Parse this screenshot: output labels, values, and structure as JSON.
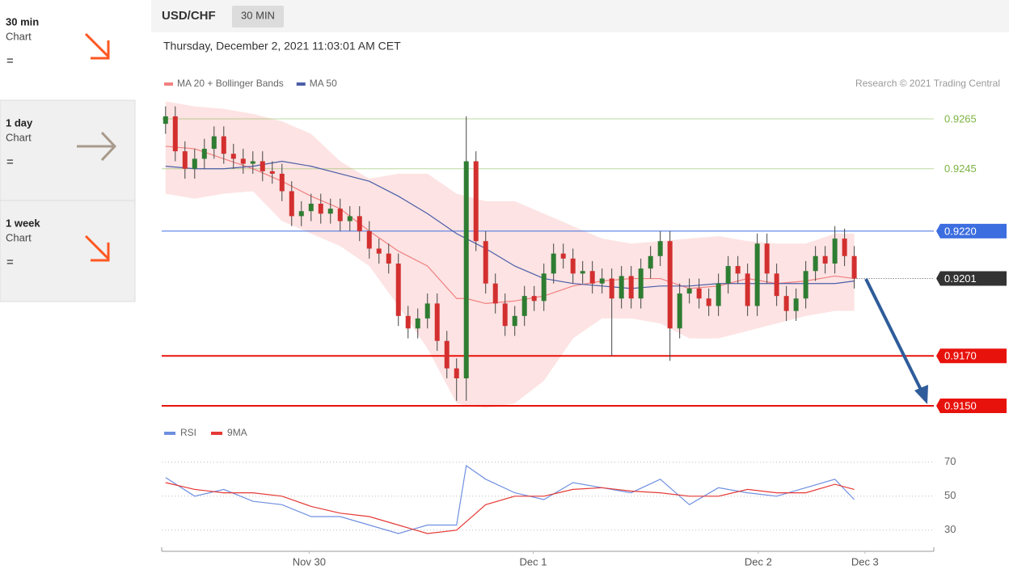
{
  "sidebar": [
    {
      "title": "30 min",
      "subtitle": "Chart",
      "status": "="
    },
    {
      "title": "1 day",
      "subtitle": "Chart",
      "status": "="
    },
    {
      "title": "1 week",
      "subtitle": "Chart",
      "status": "="
    }
  ],
  "header": {
    "symbol": "USD/CHF",
    "timeframe": "30 MIN",
    "timestamp": "Thursday, December 2, 2021 11:03:01 AM CET"
  },
  "chart_data": [
    {
      "type": "candlestick",
      "copyright": "Research © 2021 Trading Central",
      "xlim": [
        -0.4,
        79.2
      ],
      "ylim": [
        0.9146,
        0.9272
      ],
      "up_color": "#2e7d32",
      "down_color": "#d32f2f",
      "wick_color": "#444444",
      "open": [
        0.9263,
        0.9266,
        0.9252,
        0.9245,
        0.9249,
        0.9253,
        0.9258,
        0.9251,
        0.9249,
        0.9247,
        0.9248,
        0.9244,
        0.9243,
        0.9236,
        0.9226,
        0.9228,
        0.9231,
        0.9227,
        0.9229,
        0.9224,
        0.9226,
        0.922,
        0.9213,
        0.9211,
        0.9207,
        0.9186,
        0.9181,
        0.9185,
        0.9191,
        0.9176,
        0.9165,
        0.9161,
        0.9248,
        0.9216,
        0.9199,
        0.9191,
        0.9182,
        0.9186,
        0.9194,
        0.9192,
        0.9203,
        0.9211,
        0.9209,
        0.9203,
        0.9204,
        0.9199,
        0.9201,
        0.9193,
        0.9202,
        0.9193,
        0.9205,
        0.921,
        0.9216,
        0.9181,
        0.9195,
        0.9197,
        0.9193,
        0.919,
        0.9199,
        0.9206,
        0.9203,
        0.919,
        0.9215,
        0.9203,
        0.9194,
        0.9188,
        0.9193,
        0.9204,
        0.921,
        0.9207,
        0.9217,
        0.921
      ],
      "high": [
        0.927,
        0.927,
        0.9256,
        0.9253,
        0.9257,
        0.9262,
        0.9262,
        0.9255,
        0.9253,
        0.9252,
        0.9252,
        0.9248,
        0.9247,
        0.924,
        0.9232,
        0.9235,
        0.9235,
        0.9233,
        0.9233,
        0.923,
        0.923,
        0.9224,
        0.9217,
        0.9215,
        0.9211,
        0.919,
        0.9189,
        0.9195,
        0.9195,
        0.918,
        0.9169,
        0.9266,
        0.9252,
        0.922,
        0.9203,
        0.9195,
        0.919,
        0.9198,
        0.9198,
        0.9207,
        0.9215,
        0.9215,
        0.9213,
        0.9208,
        0.9208,
        0.9205,
        0.9205,
        0.9206,
        0.9206,
        0.9209,
        0.9214,
        0.922,
        0.922,
        0.9199,
        0.9201,
        0.9201,
        0.9197,
        0.9203,
        0.921,
        0.921,
        0.9207,
        0.9219,
        0.9219,
        0.9207,
        0.9198,
        0.9197,
        0.9208,
        0.9214,
        0.9214,
        0.9222,
        0.9221,
        0.9214
      ],
      "low": [
        0.9259,
        0.9248,
        0.9241,
        0.9241,
        0.9245,
        0.9249,
        0.9247,
        0.9245,
        0.9243,
        0.9243,
        0.924,
        0.9239,
        0.9232,
        0.9222,
        0.9222,
        0.9224,
        0.9223,
        0.9223,
        0.922,
        0.922,
        0.9216,
        0.9209,
        0.9207,
        0.9203,
        0.9182,
        0.9177,
        0.9177,
        0.9181,
        0.9172,
        0.9161,
        0.9152,
        0.9152,
        0.9212,
        0.9195,
        0.9187,
        0.9178,
        0.9178,
        0.9182,
        0.9188,
        0.9188,
        0.9199,
        0.9205,
        0.9199,
        0.9199,
        0.9195,
        0.9195,
        0.917,
        0.9189,
        0.9189,
        0.9189,
        0.9201,
        0.9206,
        0.9168,
        0.9177,
        0.9191,
        0.9189,
        0.9186,
        0.9186,
        0.9195,
        0.9199,
        0.9186,
        0.9186,
        0.9199,
        0.919,
        0.9184,
        0.9184,
        0.9189,
        0.92,
        0.9203,
        0.9203,
        0.9206,
        0.9197
      ],
      "close": [
        0.9266,
        0.9252,
        0.9245,
        0.9249,
        0.9253,
        0.9258,
        0.9251,
        0.9249,
        0.9247,
        0.9248,
        0.9244,
        0.9243,
        0.9236,
        0.9226,
        0.9228,
        0.9231,
        0.9227,
        0.9229,
        0.9224,
        0.9226,
        0.922,
        0.9213,
        0.9211,
        0.9207,
        0.9186,
        0.9181,
        0.9185,
        0.9191,
        0.9176,
        0.9165,
        0.9161,
        0.9248,
        0.9216,
        0.9199,
        0.9191,
        0.9182,
        0.9186,
        0.9194,
        0.9192,
        0.9203,
        0.9211,
        0.9209,
        0.9203,
        0.9204,
        0.9199,
        0.9201,
        0.9193,
        0.9202,
        0.9193,
        0.9205,
        0.921,
        0.9216,
        0.9181,
        0.9195,
        0.9197,
        0.9193,
        0.919,
        0.9199,
        0.9206,
        0.9203,
        0.919,
        0.9215,
        0.9203,
        0.9194,
        0.9188,
        0.9193,
        0.9204,
        0.921,
        0.9207,
        0.9217,
        0.921,
        0.9201
      ],
      "indicators": {
        "x": [
          0,
          3,
          6,
          9,
          12,
          15,
          18,
          21,
          24,
          27,
          30,
          31,
          33,
          36,
          39,
          42,
          45,
          48,
          51,
          54,
          57,
          60,
          63,
          66,
          69,
          71
        ],
        "series": [
          {
            "name": "MA 20 + Bollinger Bands",
            "color": "#f08080",
            "band_color": "#fde3e3",
            "values": [
              0.9254,
              0.9253,
              0.9249,
              0.9245,
              0.924,
              0.9234,
              0.9229,
              0.922,
              0.9212,
              0.9206,
              0.9193,
              0.9193,
              0.9191,
              0.9192,
              0.9194,
              0.9198,
              0.92,
              0.9201,
              0.9201,
              0.9197,
              0.9198,
              0.9201,
              0.9199,
              0.92,
              0.9202,
              0.9201
            ],
            "upper": [
              0.9272,
              0.927,
              0.9269,
              0.9267,
              0.9264,
              0.9259,
              0.9248,
              0.9241,
              0.9243,
              0.9243,
              0.9235,
              0.9234,
              0.9232,
              0.9232,
              0.9227,
              0.9222,
              0.9217,
              0.9215,
              0.9216,
              0.9217,
              0.9218,
              0.9216,
              0.9215,
              0.9215,
              0.9219,
              0.9219
            ],
            "lower": [
              0.9235,
              0.9233,
              0.9235,
              0.9236,
              0.9224,
              0.9219,
              0.9214,
              0.9206,
              0.919,
              0.9173,
              0.9151,
              0.915,
              0.9149,
              0.9151,
              0.916,
              0.9177,
              0.9185,
              0.9185,
              0.9183,
              0.9177,
              0.9177,
              0.918,
              0.9183,
              0.9186,
              0.9188,
              0.9188
            ]
          },
          {
            "name": "MA 50",
            "color": "#4a5ea8",
            "values": [
              0.9246,
              0.9245,
              0.9245,
              0.9246,
              0.9248,
              0.9246,
              0.9243,
              0.924,
              0.9234,
              0.9227,
              0.9219,
              0.9217,
              0.9213,
              0.9206,
              0.9201,
              0.9199,
              0.9198,
              0.9197,
              0.9198,
              0.9198,
              0.9199,
              0.9199,
              0.9199,
              0.9199,
              0.9199,
              0.92
            ]
          }
        ]
      },
      "levels": [
        {
          "value": 0.9265,
          "color": "#7cb342",
          "style": "minor"
        },
        {
          "value": 0.9245,
          "color": "#7cb342",
          "style": "minor"
        },
        {
          "value": 0.922,
          "label": "0.9220",
          "color": "#3d6ee0",
          "style": "box"
        },
        {
          "value": 0.9201,
          "color": "#333333",
          "style": "current"
        },
        {
          "value": 0.917,
          "label": "0.9170",
          "color": "#e8120c",
          "style": "box"
        },
        {
          "value": 0.915,
          "label": "0.9150",
          "color": "#e8120c",
          "style": "box"
        }
      ]
    },
    {
      "type": "line",
      "xlim": [
        -0.4,
        79.2
      ],
      "ylim": [
        18,
        78
      ],
      "yticks": [
        70,
        50,
        30
      ],
      "grid": true,
      "x": [
        0,
        3,
        6,
        9,
        12,
        15,
        18,
        21,
        24,
        27,
        30,
        31,
        33,
        36,
        39,
        42,
        45,
        48,
        51,
        54,
        57,
        60,
        63,
        66,
        69,
        71
      ],
      "xticks": [
        {
          "value": 14.8,
          "label": "Nov 30"
        },
        {
          "value": 37.9,
          "label": "Dec 1"
        },
        {
          "value": 61.1,
          "label": "Dec 2"
        },
        {
          "value": 72.1,
          "label": "Dec 3"
        }
      ],
      "series": [
        {
          "name": "RSI",
          "color": "#6f8fe0",
          "values": [
            61,
            50,
            54,
            47,
            45,
            38,
            38,
            33,
            28,
            33,
            33,
            68,
            60,
            52,
            48,
            58,
            55,
            52,
            60,
            45,
            55,
            52,
            50,
            55,
            60,
            48
          ]
        },
        {
          "name": "9MA",
          "color": "#e53935",
          "values": [
            58,
            54,
            52,
            52,
            50,
            44,
            40,
            38,
            33,
            28,
            30,
            35,
            45,
            50,
            50,
            54,
            55,
            53,
            52,
            50,
            50,
            54,
            52,
            52,
            57,
            54
          ]
        }
      ]
    }
  ]
}
